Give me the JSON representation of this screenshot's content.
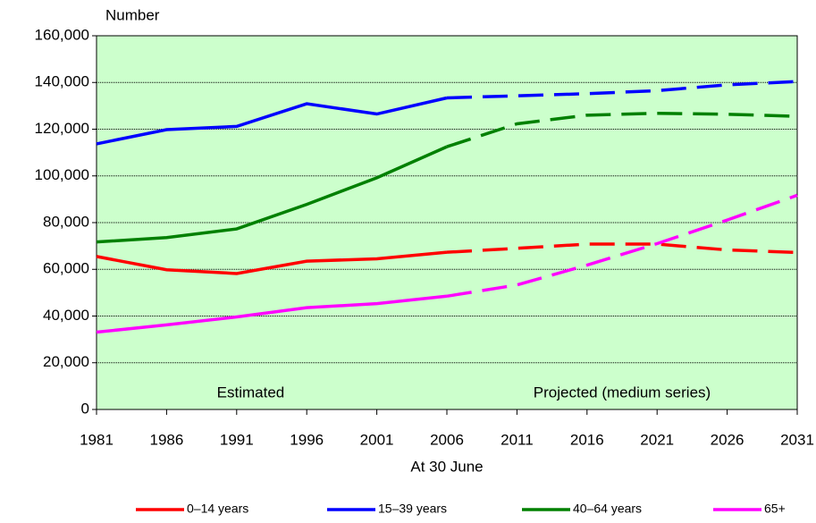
{
  "chart_data": {
    "type": "line",
    "y_label": "Number",
    "x_label": "At 30 June",
    "x": [
      1981,
      1986,
      1991,
      1996,
      2001,
      2006,
      2011,
      2016,
      2021,
      2026,
      2031
    ],
    "xlim": [
      1981,
      2031
    ],
    "xticks": [
      1981,
      1986,
      1991,
      1996,
      2001,
      2006,
      2011,
      2016,
      2021,
      2026,
      2031
    ],
    "ylim": [
      0,
      160000
    ],
    "yticks": [
      0,
      {
        "value": 20000,
        "label": "20,000"
      },
      {
        "value": 40000,
        "label": "40,000"
      },
      {
        "value": 60000,
        "label": "60,000"
      },
      {
        "value": 80000,
        "label": "80,000"
      },
      {
        "value": 100000,
        "label": "100,000"
      },
      {
        "value": 120000,
        "label": "120,000"
      },
      {
        "value": 140000,
        "label": "140,000"
      },
      {
        "value": 160000,
        "label": "160,000"
      }
    ],
    "grid": true,
    "background": "#ccffcc",
    "projection_from": 2006,
    "annotations": [
      {
        "text": "Estimated",
        "x": 1992
      },
      {
        "text": "Projected (medium series)",
        "x": 2018.5
      }
    ],
    "legend": "bottom",
    "series": [
      {
        "name": "0–14 years",
        "color": "#ff0000",
        "values": [
          65500,
          59800,
          58200,
          63500,
          64500,
          67300,
          69000,
          70800,
          70800,
          68300,
          67200
        ]
      },
      {
        "name": "15–39 years",
        "color": "#0000ff",
        "values": [
          113700,
          119800,
          121200,
          130900,
          126500,
          133400,
          134300,
          135200,
          136500,
          139000,
          140400
        ]
      },
      {
        "name": "40–64 years",
        "color": "#008000",
        "values": [
          71700,
          73600,
          77300,
          87800,
          99200,
          112500,
          122300,
          126000,
          126800,
          126400,
          125500
        ]
      },
      {
        "name": "65+",
        "color": "#ff00ff",
        "values": [
          33100,
          36200,
          39600,
          43600,
          45300,
          48500,
          53300,
          61800,
          71000,
          81100,
          91700
        ]
      }
    ]
  }
}
